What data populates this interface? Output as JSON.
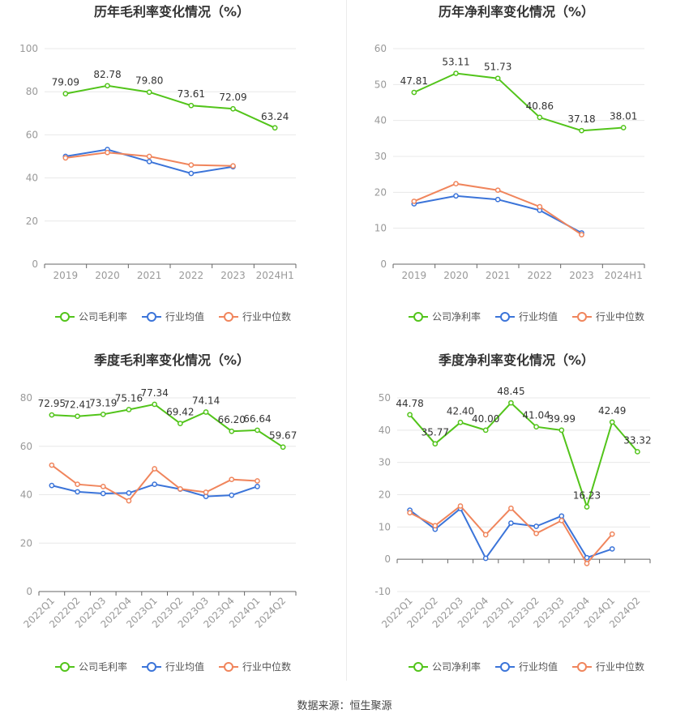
{
  "colors": {
    "company": "#52c41a",
    "industry_avg": "#3b74d9",
    "industry_median": "#f0855c",
    "grid": "#e8e8e8",
    "axis": "#999999"
  },
  "footer": {
    "source": "数据来源：恒生聚源"
  },
  "chart_data": [
    {
      "type": "line",
      "title": "历年毛利率变化情况（%）",
      "categories": [
        "2019",
        "2020",
        "2021",
        "2022",
        "2023",
        "2024H1"
      ],
      "ylim": [
        0,
        100
      ],
      "yticks": [
        0,
        20,
        40,
        60,
        80,
        100
      ],
      "grid": true,
      "legend_placement": "bottom",
      "series": [
        {
          "name": "公司毛利率",
          "values": [
            79.09,
            82.78,
            79.8,
            73.61,
            72.09,
            63.24
          ],
          "labels": [
            "79.09",
            "82.78",
            "79.80",
            "73.61",
            "72.09",
            "63.24"
          ]
        },
        {
          "name": "行业均值",
          "values": [
            50.0,
            53.2,
            47.6,
            42.1,
            45.2,
            null
          ]
        },
        {
          "name": "行业中位数",
          "values": [
            49.3,
            51.8,
            50.0,
            46.0,
            45.6,
            null
          ]
        }
      ]
    },
    {
      "type": "line",
      "title": "历年净利率变化情况（%）",
      "categories": [
        "2019",
        "2020",
        "2021",
        "2022",
        "2023",
        "2024H1"
      ],
      "ylim": [
        0,
        60
      ],
      "yticks": [
        0,
        10,
        20,
        30,
        40,
        50,
        60
      ],
      "grid": true,
      "legend_placement": "bottom",
      "series": [
        {
          "name": "公司净利率",
          "values": [
            47.81,
            53.11,
            51.73,
            40.86,
            37.18,
            38.01
          ],
          "labels": [
            "47.81",
            "53.11",
            "51.73",
            "40.86",
            "37.18",
            "38.01"
          ]
        },
        {
          "name": "行业均值",
          "values": [
            16.8,
            19.0,
            18.0,
            15.0,
            8.7,
            null
          ]
        },
        {
          "name": "行业中位数",
          "values": [
            17.5,
            22.4,
            20.6,
            16.0,
            8.2,
            null
          ]
        }
      ]
    },
    {
      "type": "line",
      "title": "季度毛利率变化情况（%）",
      "categories": [
        "2022Q1",
        "2022Q2",
        "2022Q3",
        "2022Q4",
        "2023Q1",
        "2023Q2",
        "2023Q3",
        "2023Q4",
        "2024Q1",
        "2024Q2"
      ],
      "ylim": [
        0,
        80
      ],
      "yticks": [
        0,
        20,
        40,
        60,
        80
      ],
      "grid": true,
      "legend_placement": "bottom",
      "series": [
        {
          "name": "公司毛利率",
          "values": [
            72.95,
            72.41,
            73.19,
            75.16,
            77.34,
            69.42,
            74.14,
            66.2,
            66.64,
            59.67
          ],
          "labels": [
            "72.95",
            "72.41",
            "73.19",
            "75.16",
            "77.34",
            "69.42",
            "74.14",
            "66.20",
            "66.64",
            "59.67"
          ]
        },
        {
          "name": "行业均值",
          "values": [
            43.8,
            41.2,
            40.5,
            40.7,
            44.3,
            42.3,
            39.3,
            39.8,
            43.4,
            null
          ]
        },
        {
          "name": "行业中位数",
          "values": [
            52.2,
            44.3,
            43.4,
            37.5,
            50.7,
            42.4,
            41.0,
            46.3,
            45.7,
            null
          ]
        }
      ]
    },
    {
      "type": "line",
      "title": "季度净利率变化情况（%）",
      "categories": [
        "2022Q1",
        "2022Q2",
        "2022Q3",
        "2022Q4",
        "2023Q1",
        "2023Q2",
        "2023Q3",
        "2023Q4",
        "2024Q1",
        "2024Q2"
      ],
      "ylim": [
        -10,
        50
      ],
      "yticks": [
        -10,
        0,
        10,
        20,
        30,
        40,
        50
      ],
      "grid": true,
      "legend_placement": "bottom",
      "series": [
        {
          "name": "公司净利率",
          "values": [
            44.78,
            35.77,
            42.4,
            40.0,
            48.45,
            41.04,
            39.99,
            16.23,
            42.49,
            33.32
          ],
          "labels": [
            "44.78",
            "35.77",
            "42.40",
            "40.00",
            "48.45",
            "41.04",
            "39.99",
            "16.23",
            "42.49",
            "33.32"
          ]
        },
        {
          "name": "行业均值",
          "values": [
            15.2,
            9.3,
            15.7,
            0.3,
            11.2,
            10.2,
            13.4,
            0.5,
            3.2,
            null
          ]
        },
        {
          "name": "行业中位数",
          "values": [
            14.4,
            10.4,
            16.5,
            7.6,
            15.8,
            8.0,
            12.0,
            -1.3,
            7.8,
            null
          ]
        }
      ]
    }
  ]
}
